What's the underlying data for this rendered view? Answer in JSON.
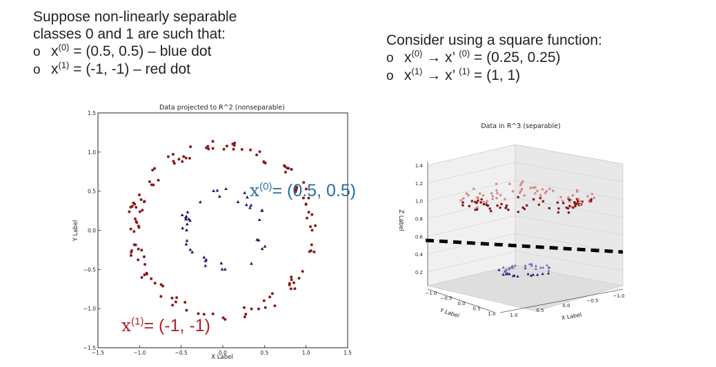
{
  "left_text": {
    "heading_line1": "Suppose non-linearly separable",
    "heading_line2": "classes 0 and 1 are such that:",
    "bullet_marker": "o",
    "bullet1_base": "x",
    "bullet1_sup": "(0)",
    "bullet1_rest": " = (0.5, 0.5) – blue dot",
    "bullet2_base": "x",
    "bullet2_sup": "(1)",
    "bullet2_rest": " = (-1, -1) – red dot"
  },
  "right_text": {
    "heading": "Consider using a square function:",
    "bullet_marker": "o",
    "bullet1_base": "x",
    "bullet1_sup": "(0)",
    "bullet1_mid": " → x’ ",
    "bullet1_sup2": "(0)",
    "bullet1_rest": " = (0.25, 0.25)",
    "bullet2_base": "x",
    "bullet2_sup": "(1)",
    "bullet2_mid": " → x’ ",
    "bullet2_sup2": "(1)",
    "bullet2_rest": " = (1, 1)"
  },
  "annotations": {
    "blue_base": "x",
    "blue_sup": "(0)",
    "blue_rest": "= (0.5, 0.5)",
    "red_base": "x",
    "red_sup": "(1)",
    "red_rest": "= (-1, -1)"
  },
  "colors": {
    "class0": "#1a1a6e",
    "class1": "#8b1a1a",
    "class1_light": "#d98a8a",
    "class0_light": "#7070b0",
    "blue_annotation": "#2a6fa0",
    "red_annotation": "#b22222"
  },
  "chart_data": [
    {
      "type": "scatter",
      "title": "Data projected to R^2 (nonseparable)",
      "xlabel": "X Label",
      "ylabel": "Y Label",
      "xlim": [
        -1.5,
        1.5
      ],
      "ylim": [
        -1.5,
        1.5
      ],
      "xticks": [
        "−1.5",
        "−1.0",
        "−0.5",
        "0.0",
        "0.5",
        "1.0",
        "1.5"
      ],
      "yticks": [
        "−1.5",
        "−1.0",
        "−0.5",
        "0.0",
        "0.5",
        "1.0",
        "1.5"
      ],
      "series": [
        {
          "marker": "triangle",
          "radius_range": [
            0.4,
            0.55
          ],
          "count": 40
        },
        {
          "marker": "circle",
          "radius_range": [
            1.0,
            1.15
          ],
          "count": 130
        }
      ]
    },
    {
      "type": "scatter",
      "title": "Data in R^3 (separable)",
      "xlabel": "X Label",
      "ylabel": "Y Label",
      "zlabel": "Z Label",
      "zticks": [
        "0.2",
        "0.4",
        "0.6",
        "0.8",
        "1.0",
        "1.2",
        "1.4"
      ],
      "yticks": [
        "−1.0",
        "−0.5",
        "0.0",
        "0.5",
        "1.0"
      ],
      "xticks": [
        "1.0",
        "0.5",
        "0.0",
        "−0.5",
        "−1.0"
      ],
      "separator": "dashed plane"
    }
  ]
}
